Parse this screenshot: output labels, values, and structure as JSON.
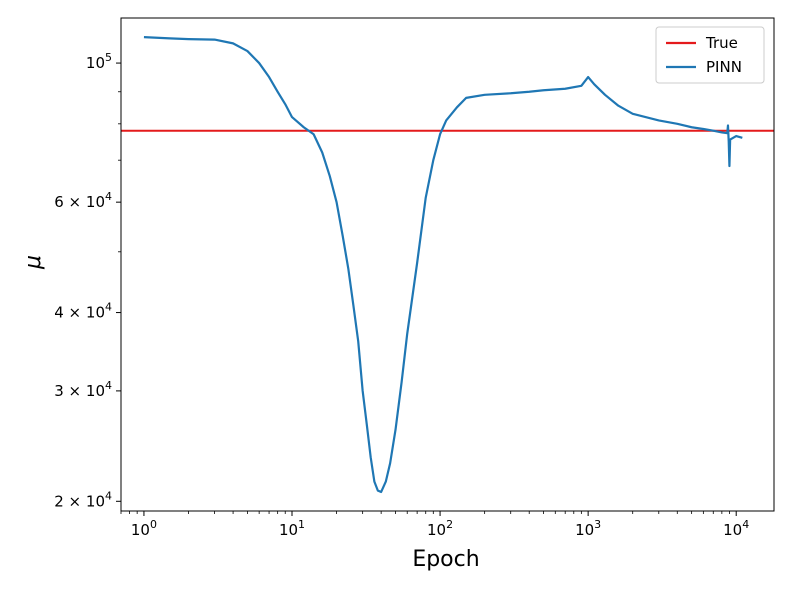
{
  "chart_data": {
    "type": "line",
    "xlabel": "Epoch",
    "ylabel": "μ",
    "x_scale": "log",
    "y_scale": "log",
    "xlim": [
      0.7,
      18000
    ],
    "ylim": [
      19300,
      118000
    ],
    "grid": false,
    "legend_placement": "top-right",
    "x_ticks": [
      {
        "value": 1,
        "base": "10",
        "exp": "0"
      },
      {
        "value": 10,
        "base": "10",
        "exp": "1"
      },
      {
        "value": 100,
        "base": "10",
        "exp": "2"
      },
      {
        "value": 1000,
        "base": "10",
        "exp": "3"
      },
      {
        "value": 10000,
        "base": "10",
        "exp": "4"
      }
    ],
    "y_ticks": [
      {
        "value": 20000,
        "mant": "2 × ",
        "base": "10",
        "exp": "4"
      },
      {
        "value": 30000,
        "mant": "3 × ",
        "base": "10",
        "exp": "4"
      },
      {
        "value": 40000,
        "mant": "4 × ",
        "base": "10",
        "exp": "4"
      },
      {
        "value": 60000,
        "mant": "6 × ",
        "base": "10",
        "exp": "4"
      },
      {
        "value": 100000,
        "mant": "",
        "base": "10",
        "exp": "5"
      }
    ],
    "series": [
      {
        "name": "True",
        "kind": "hline",
        "color": "#e41a1c",
        "y": 78000
      },
      {
        "name": "PINN",
        "kind": "line",
        "color": "#1f77b4",
        "points": [
          [
            1,
            110000
          ],
          [
            1.5,
            109500
          ],
          [
            2,
            109200
          ],
          [
            3,
            109000
          ],
          [
            4,
            107500
          ],
          [
            5,
            104500
          ],
          [
            6,
            100000
          ],
          [
            7,
            95000
          ],
          [
            8,
            90000
          ],
          [
            9,
            86000
          ],
          [
            10,
            82000
          ],
          [
            12,
            79000
          ],
          [
            14,
            77000
          ],
          [
            16,
            72000
          ],
          [
            18,
            66000
          ],
          [
            20,
            60000
          ],
          [
            22,
            53000
          ],
          [
            24,
            47000
          ],
          [
            26,
            41000
          ],
          [
            28,
            36000
          ],
          [
            30,
            30000
          ],
          [
            32,
            26500
          ],
          [
            34,
            23500
          ],
          [
            36,
            21500
          ],
          [
            38,
            20800
          ],
          [
            40,
            20700
          ],
          [
            43,
            21500
          ],
          [
            46,
            23000
          ],
          [
            50,
            26000
          ],
          [
            55,
            31000
          ],
          [
            60,
            37000
          ],
          [
            70,
            48000
          ],
          [
            80,
            61000
          ],
          [
            90,
            70000
          ],
          [
            100,
            77000
          ],
          [
            110,
            81000
          ],
          [
            130,
            85000
          ],
          [
            150,
            88000
          ],
          [
            200,
            89000
          ],
          [
            300,
            89500
          ],
          [
            400,
            90000
          ],
          [
            500,
            90500
          ],
          [
            700,
            91000
          ],
          [
            900,
            92000
          ],
          [
            1000,
            95000
          ],
          [
            1100,
            92500
          ],
          [
            1300,
            89000
          ],
          [
            1600,
            85500
          ],
          [
            2000,
            83000
          ],
          [
            3000,
            81000
          ],
          [
            4000,
            80000
          ],
          [
            5000,
            79000
          ],
          [
            6000,
            78500
          ],
          [
            7000,
            78000
          ],
          [
            8000,
            77500
          ],
          [
            8700,
            77300
          ],
          [
            8800,
            79500
          ],
          [
            8900,
            75000
          ],
          [
            9000,
            68500
          ],
          [
            9100,
            75500
          ],
          [
            10000,
            76500
          ],
          [
            11000,
            76000
          ]
        ]
      }
    ]
  }
}
